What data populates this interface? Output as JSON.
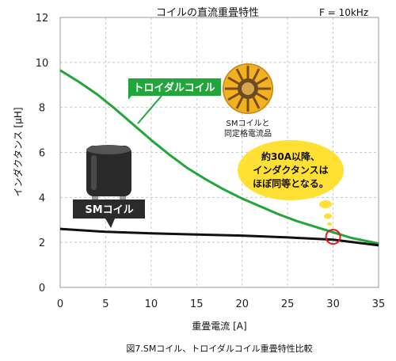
{
  "chart_data": {
    "type": "line",
    "title": "コイルの直流重畳特性",
    "condition": "F = 10kHz",
    "xlabel": "重畳電流 [A]",
    "ylabel": "インダクタンス [μH]",
    "caption": "図7.SMコイル、トロイダルコイル重畳特性比較",
    "xlim": [
      0,
      35
    ],
    "ylim": [
      0,
      12
    ],
    "xticks": [
      0,
      5,
      10,
      15,
      20,
      25,
      30,
      35
    ],
    "yticks": [
      0,
      2,
      4,
      6,
      8,
      10,
      12
    ],
    "grid": true,
    "series": [
      {
        "name": "トロイダルコイル",
        "color": "#22a53a",
        "x": [
          0,
          2,
          4,
          6,
          8,
          10,
          12,
          14,
          16,
          18,
          20,
          22,
          24,
          26,
          28,
          30,
          32,
          35
        ],
        "y": [
          9.65,
          9.15,
          8.6,
          7.95,
          7.25,
          6.55,
          5.9,
          5.3,
          4.8,
          4.35,
          3.95,
          3.6,
          3.25,
          2.95,
          2.7,
          2.45,
          2.2,
          1.95
        ]
      },
      {
        "name": "SMコイル",
        "color": "#111111",
        "x": [
          0,
          5,
          10,
          15,
          20,
          25,
          30,
          35
        ],
        "y": [
          2.6,
          2.47,
          2.4,
          2.35,
          2.3,
          2.22,
          2.12,
          1.87
        ]
      }
    ],
    "annotations": {
      "toroidal_label": "トロイダルコイル",
      "toroidal_note_line1": "SMコイルと",
      "toroidal_note_line2": "同定格電流品",
      "sm_label": "SMコイル",
      "bubble_line1": "約30A以降、",
      "bubble_line2": "インダクタンスは",
      "bubble_line3": "ほぼ同等となる。",
      "marker_x": 30,
      "marker_y": 2.25
    }
  }
}
